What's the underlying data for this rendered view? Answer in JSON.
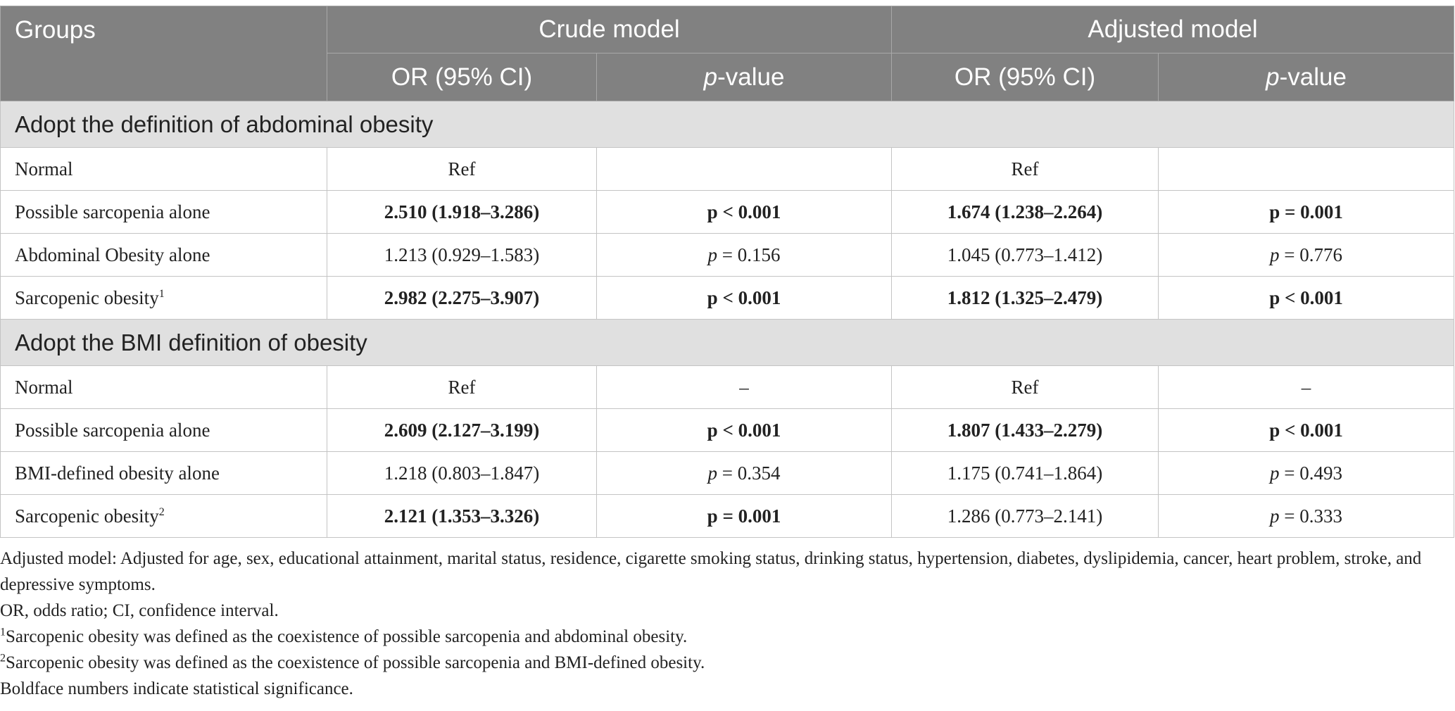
{
  "header": {
    "groups": "Groups",
    "crude_model": "Crude model",
    "adjusted_model": "Adjusted model",
    "or_ci_crude": "OR (95% CI)",
    "p_value_crude": "-value",
    "or_ci_adjusted": "OR (95% CI)",
    "p_value_adjusted": "-value",
    "p_letter": "p"
  },
  "sections": [
    {
      "title": "Adopt the definition of abdominal obesity",
      "rows": [
        {
          "group": "Normal",
          "sup": "",
          "crude_or": "Ref",
          "crude_p": "",
          "adj_or": "Ref",
          "adj_p": ""
        },
        {
          "group": "Possible sarcopenia alone",
          "sup": "",
          "crude_or": "2.510 (1.918–3.286)",
          "crude_p": "p < 0.001",
          "adj_or": "1.674 (1.238–2.264)",
          "adj_p": "p = 0.001"
        },
        {
          "group": "Abdominal Obesity alone",
          "sup": "",
          "crude_or": "1.213 (0.929–1.583)",
          "crude_p": "= 0.156",
          "adj_or": "1.045 (0.773–1.412)",
          "adj_p": "= 0.776"
        },
        {
          "group": "Sarcopenic obesity",
          "sup": "1",
          "crude_or": "2.982 (2.275–3.907)",
          "crude_p": "p < 0.001",
          "adj_or": "1.812 (1.325–2.479)",
          "adj_p": "p < 0.001"
        }
      ]
    },
    {
      "title": "Adopt the BMI definition of obesity",
      "rows": [
        {
          "group": "Normal",
          "sup": "",
          "crude_or": "Ref",
          "crude_p": "–",
          "adj_or": "Ref",
          "adj_p": "–"
        },
        {
          "group": "Possible sarcopenia alone",
          "sup": "",
          "crude_or": "2.609 (2.127–3.199)",
          "crude_p": "p < 0.001",
          "adj_or": "1.807 (1.433–2.279)",
          "adj_p": "p < 0.001"
        },
        {
          "group": "BMI-defined obesity alone",
          "sup": "",
          "crude_or": "1.218 (0.803–1.847)",
          "crude_p": "= 0.354",
          "adj_or": "1.175 (0.741–1.864)",
          "adj_p": "= 0.493"
        },
        {
          "group": "Sarcopenic obesity",
          "sup": "2",
          "crude_or": "2.121 (1.353–3.326)",
          "crude_p": "p = 0.001",
          "adj_or": "1.286 (0.773–2.141)",
          "adj_p": "= 0.333"
        }
      ]
    }
  ],
  "notes": {
    "adjusted": "Adjusted model: Adjusted for age, sex, educational attainment, marital status, residence, cigarette smoking status, drinking status, hypertension, diabetes, dyslipidemia, cancer, heart problem, stroke, and depressive symptoms.",
    "abbrev": "OR, odds ratio; CI, confidence interval.",
    "fn1_mark": "1",
    "fn1": "Sarcopenic obesity was defined as the coexistence of possible sarcopenia and abdominal obesity.",
    "fn2_mark": "2",
    "fn2": "Sarcopenic obesity was defined as the coexistence of possible sarcopenia and BMI-defined obesity.",
    "bold": "Boldface numbers indicate statistical significance."
  }
}
